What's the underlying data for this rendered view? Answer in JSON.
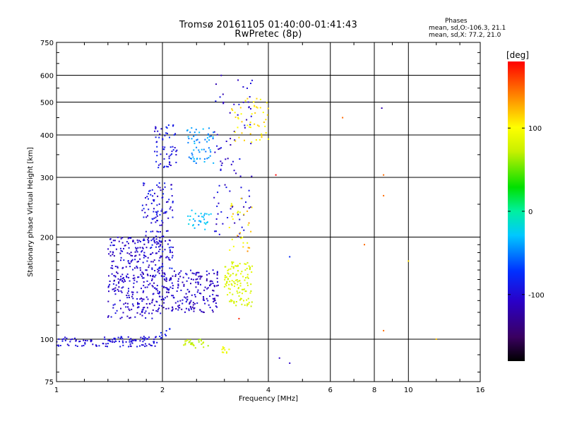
{
  "header": {
    "title_line1": "Tromsø 20161105 01:40:00-01:41:43",
    "title_line2": "RwPretec (8p)"
  },
  "phases": {
    "heading": "Phases",
    "o_mode": "mean, sd,O:-106.3, 21.1",
    "x_mode": "mean, sd,X:  77.2, 21.0"
  },
  "colorbar": {
    "unit": "[deg]",
    "range": [
      -180,
      180
    ],
    "tick_values": [
      100,
      0,
      -100
    ],
    "tick_labels": [
      "100",
      "0",
      "-100"
    ]
  },
  "chart_data": {
    "type": "scatter",
    "xlabel": "Frequency [MHz]",
    "ylabel": "Stationary phase Virtual Height [km]",
    "x_scale": "log",
    "y_scale": "log",
    "xlim": [
      1,
      16
    ],
    "ylim": [
      75,
      750
    ],
    "grid": true,
    "x_ticks": [
      1,
      2,
      4,
      6,
      8,
      10,
      16
    ],
    "x_tick_labels": [
      "1",
      "2",
      "4",
      "6",
      "8",
      "10",
      "16"
    ],
    "y_ticks": [
      75,
      100,
      200,
      300,
      400,
      500,
      600,
      750
    ],
    "y_tick_labels": [
      "75",
      "100",
      "200",
      "300",
      "400",
      "500",
      "600",
      "750"
    ],
    "clusters": [
      {
        "region": "E-layer O trace",
        "x_range": [
          1.0,
          1.95
        ],
        "y_range": [
          95,
          102
        ],
        "phase_deg": [
          -110,
          -90
        ],
        "count": 120
      },
      {
        "region": "E-layer O retrace",
        "x_range": [
          1.95,
          2.1
        ],
        "y_range": [
          100,
          108
        ],
        "phase_deg": [
          -100,
          -80
        ],
        "count": 10
      },
      {
        "region": "E-layer X trace",
        "x_range": [
          2.3,
          2.7
        ],
        "y_range": [
          94,
          100
        ],
        "phase_deg": [
          60,
          80
        ],
        "count": 25
      },
      {
        "region": "E-layer X retrace",
        "x_range": [
          2.95,
          3.1
        ],
        "y_range": [
          91,
          95
        ],
        "phase_deg": [
          85,
          95
        ],
        "count": 10
      },
      {
        "region": "F-layer O lower",
        "x_range": [
          1.4,
          2.0
        ],
        "y_range": [
          115,
          200
        ],
        "phase_deg": [
          -120,
          -95
        ],
        "count": 340
      },
      {
        "region": "F-layer O upper",
        "x_range": [
          1.75,
          2.15
        ],
        "y_range": [
          150,
          290
        ],
        "phase_deg": [
          -115,
          -80
        ],
        "count": 150
      },
      {
        "region": "F-layer O 2-hop",
        "x_range": [
          1.9,
          2.2
        ],
        "y_range": [
          320,
          430
        ],
        "phase_deg": [
          -110,
          -80
        ],
        "count": 60
      },
      {
        "region": "F-layer O cusp",
        "x_range": [
          2.0,
          2.9
        ],
        "y_range": [
          120,
          160
        ],
        "phase_deg": [
          -125,
          -95
        ],
        "count": 200
      },
      {
        "region": "F-layer O high",
        "x_range": [
          2.8,
          3.6
        ],
        "y_range": [
          200,
          600
        ],
        "phase_deg": [
          -120,
          -90
        ],
        "count": 90
      },
      {
        "region": "F-layer X trace",
        "x_range": [
          2.35,
          2.75
        ],
        "y_range": [
          210,
          240
        ],
        "phase_deg": [
          -50,
          -20
        ],
        "count": 30
      },
      {
        "region": "F-layer X 2-hop",
        "x_range": [
          2.35,
          2.8
        ],
        "y_range": [
          330,
          420
        ],
        "phase_deg": [
          -60,
          -30
        ],
        "count": 60
      },
      {
        "region": "F-layer X lower",
        "x_range": [
          3.0,
          3.6
        ],
        "y_range": [
          125,
          170
        ],
        "phase_deg": [
          70,
          90
        ],
        "count": 120
      },
      {
        "region": "F-layer X upper",
        "x_range": [
          3.1,
          3.6
        ],
        "y_range": [
          180,
          260
        ],
        "phase_deg": [
          80,
          140
        ],
        "count": 30
      },
      {
        "region": "F-layer X high",
        "x_range": [
          3.1,
          4.0
        ],
        "y_range": [
          380,
          520
        ],
        "phase_deg": [
          95,
          120
        ],
        "count": 50
      }
    ],
    "isolated_points": [
      {
        "x": 8.4,
        "y": 480,
        "phase_deg": -120
      },
      {
        "x": 4.2,
        "y": 305,
        "phase_deg": 180
      },
      {
        "x": 6.5,
        "y": 450,
        "phase_deg": 150
      },
      {
        "x": 7.5,
        "y": 190,
        "phase_deg": 150
      },
      {
        "x": 8.5,
        "y": 305,
        "phase_deg": 150
      },
      {
        "x": 8.5,
        "y": 265,
        "phase_deg": 150
      },
      {
        "x": 8.5,
        "y": 106,
        "phase_deg": 150
      },
      {
        "x": 12.0,
        "y": 100,
        "phase_deg": 120
      },
      {
        "x": 4.3,
        "y": 88,
        "phase_deg": -110
      },
      {
        "x": 4.6,
        "y": 85,
        "phase_deg": -110
      },
      {
        "x": 4.6,
        "y": 175,
        "phase_deg": -80
      },
      {
        "x": 3.3,
        "y": 115,
        "phase_deg": 170
      },
      {
        "x": 10.0,
        "y": 170,
        "phase_deg": 110
      }
    ]
  }
}
